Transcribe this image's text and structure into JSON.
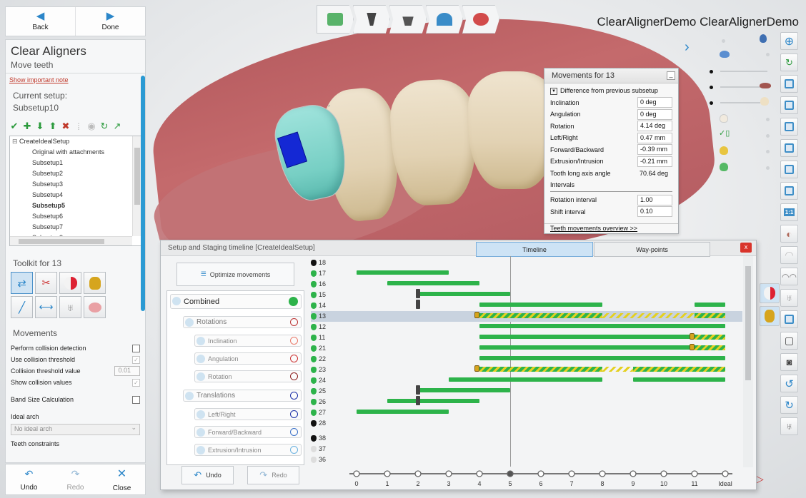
{
  "app_title": "ClearAlignerDemo ClearAlignerDemo",
  "nav": {
    "back": "Back",
    "done": "Done"
  },
  "panel": {
    "title": "Clear Aligners",
    "subtitle": "Move teeth",
    "important_note": "Show important note",
    "current_setup_label": "Current setup:",
    "current_setup_value": "Subsetup10",
    "tree": {
      "root": "CreateIdealSetup",
      "items": [
        "Original with attachments",
        "Subsetup1",
        "Subsetup2",
        "Subsetup3",
        "Subsetup4",
        "Subsetup5",
        "Subsetup6",
        "Subsetup7",
        "Subsetup8"
      ],
      "bold_item": "Subsetup5"
    },
    "toolkit_title": "Toolkit for 13",
    "movements_title": "Movements",
    "perform_collision": "Perform collision detection",
    "use_collision_threshold": "Use collision threshold",
    "collision_threshold_value_label": "Collision threshold value",
    "collision_threshold_value": "0.01",
    "show_collision_values": "Show collision values",
    "band_size": "Band Size Calculation",
    "ideal_arch_label": "Ideal arch",
    "ideal_arch_value": "No ideal arch",
    "teeth_constraints": "Teeth constraints"
  },
  "bottom_nav": {
    "undo": "Undo",
    "redo": "Redo",
    "close": "Close"
  },
  "movements_popup": {
    "title": "Movements for 13",
    "subtitle": "Difference from previous subsetup",
    "rows": [
      {
        "label": "Inclination",
        "value": "0 deg"
      },
      {
        "label": "Angulation",
        "value": "0 deg"
      },
      {
        "label": "Rotation",
        "value": "4.14 deg"
      },
      {
        "label": "Left/Right",
        "value": "0.47 mm"
      },
      {
        "label": "Forward/Backward",
        "value": "-0.39 mm"
      },
      {
        "label": "Extrusion/Intrusion",
        "value": "-0.21 mm"
      }
    ],
    "long_axis_label": "Tooth long axis angle",
    "long_axis_value": "70.64 deg",
    "intervals_label": "Intervals",
    "rotation_interval_label": "Rotation interval",
    "rotation_interval": "1.00",
    "shift_interval_label": "Shift interval",
    "shift_interval": "0.10",
    "overview_link": "Teeth movements overview >>"
  },
  "timeline": {
    "title": "Setup and Staging timeline  [CreateIdealSetup]",
    "close": "x",
    "tabs": [
      "Timeline",
      "Way-points"
    ],
    "optimize": "Optimize movements",
    "tree": {
      "combined": "Combined",
      "rotations": "Rotations",
      "inclination": "Inclination",
      "angulation": "Angulation",
      "rotation": "Rotation",
      "translations": "Translations",
      "left_right": "Left/Right",
      "forward_backward": "Forward/Backward",
      "extrusion_intrusion": "Extrusion/Intrusion"
    },
    "undo": "Undo",
    "redo": "Redo",
    "axis_labels": [
      "0",
      "1",
      "2",
      "3",
      "4",
      "5",
      "6",
      "7",
      "8",
      "9",
      "10",
      "11",
      "Ideal"
    ],
    "current_stage": 5,
    "selected_tooth": "13",
    "teeth": [
      {
        "id": "18",
        "color": "#111111",
        "bars": []
      },
      {
        "id": "17",
        "color": "#2db34a",
        "bars": [
          [
            0,
            3
          ]
        ]
      },
      {
        "id": "16",
        "color": "#2db34a",
        "bars": [
          [
            1,
            4
          ]
        ]
      },
      {
        "id": "15",
        "color": "#2db34a",
        "bars": [
          [
            2,
            5
          ]
        ],
        "marker": 2
      },
      {
        "id": "14",
        "color": "#2db34a",
        "bars": [
          [
            4,
            8
          ],
          [
            11,
            12
          ]
        ],
        "marker": 2
      },
      {
        "id": "13",
        "color": "#2db34a",
        "bars": [],
        "hatched": [
          [
            4,
            8
          ],
          [
            11,
            12
          ]
        ],
        "light_hatched": [
          [
            8,
            11
          ]
        ],
        "attach": 4
      },
      {
        "id": "12",
        "color": "#2db34a",
        "bars": [
          [
            4,
            12
          ]
        ]
      },
      {
        "id": "11",
        "color": "#2db34a",
        "bars": [
          [
            4,
            11
          ]
        ],
        "hatched": [
          [
            11,
            12
          ]
        ],
        "attach": 11
      },
      {
        "id": "21",
        "color": "#2db34a",
        "bars": [
          [
            4,
            11
          ]
        ],
        "hatched": [
          [
            11,
            12
          ]
        ],
        "attach": 11
      },
      {
        "id": "22",
        "color": "#2db34a",
        "bars": [
          [
            4,
            12
          ]
        ]
      },
      {
        "id": "23",
        "color": "#2db34a",
        "bars": [],
        "hatched": [
          [
            4,
            8
          ],
          [
            9,
            12
          ]
        ],
        "light_hatched": [
          [
            8,
            9
          ]
        ],
        "attach": 4
      },
      {
        "id": "24",
        "color": "#2db34a",
        "bars": [
          [
            3,
            8
          ],
          [
            9,
            12
          ]
        ]
      },
      {
        "id": "25",
        "color": "#2db34a",
        "bars": [
          [
            2,
            5
          ]
        ],
        "marker": 2
      },
      {
        "id": "26",
        "color": "#2db34a",
        "bars": [
          [
            1,
            4
          ]
        ],
        "marker": 2
      },
      {
        "id": "27",
        "color": "#2db34a",
        "bars": [
          [
            0,
            3
          ]
        ]
      },
      {
        "id": "28",
        "color": "#111111",
        "bars": []
      },
      {
        "id": "38",
        "color": "#111111",
        "bars": []
      },
      {
        "id": "37",
        "color": "#dddddd",
        "bars": []
      },
      {
        "id": "36",
        "color": "#dddddd",
        "bars": []
      }
    ]
  }
}
